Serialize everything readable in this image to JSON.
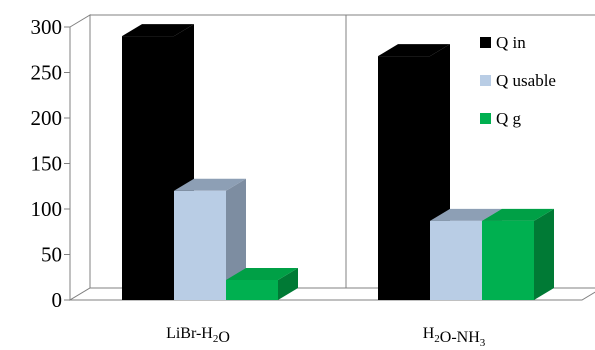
{
  "chart_data": {
    "type": "bar",
    "title": "",
    "xlabel": "",
    "ylabel": "",
    "ylim": [
      0,
      300
    ],
    "yticks": [
      0,
      50,
      100,
      150,
      200,
      250,
      300
    ],
    "grid": false,
    "legend_position": "top-right",
    "categories": [
      {
        "base": "LiBr-H",
        "sub": "2",
        "tail": "O"
      },
      {
        "base": "H",
        "sub": "2",
        "tail": "O-NH",
        "sub2": "3"
      }
    ],
    "series": [
      {
        "name": "Q in",
        "values": [
          290,
          268
        ],
        "colors": {
          "front": "#000000",
          "top": "#000000",
          "side": "#000000"
        }
      },
      {
        "name": "Q usable",
        "values": [
          120,
          87
        ],
        "colors": {
          "front": "#b9cde5",
          "top": "#8d9fb5",
          "side": "#7d8da1"
        }
      },
      {
        "name": "Q g",
        "values": [
          22,
          87
        ],
        "colors": {
          "front": "#00b050",
          "top": "#00a046",
          "side": "#007a35"
        }
      }
    ]
  }
}
